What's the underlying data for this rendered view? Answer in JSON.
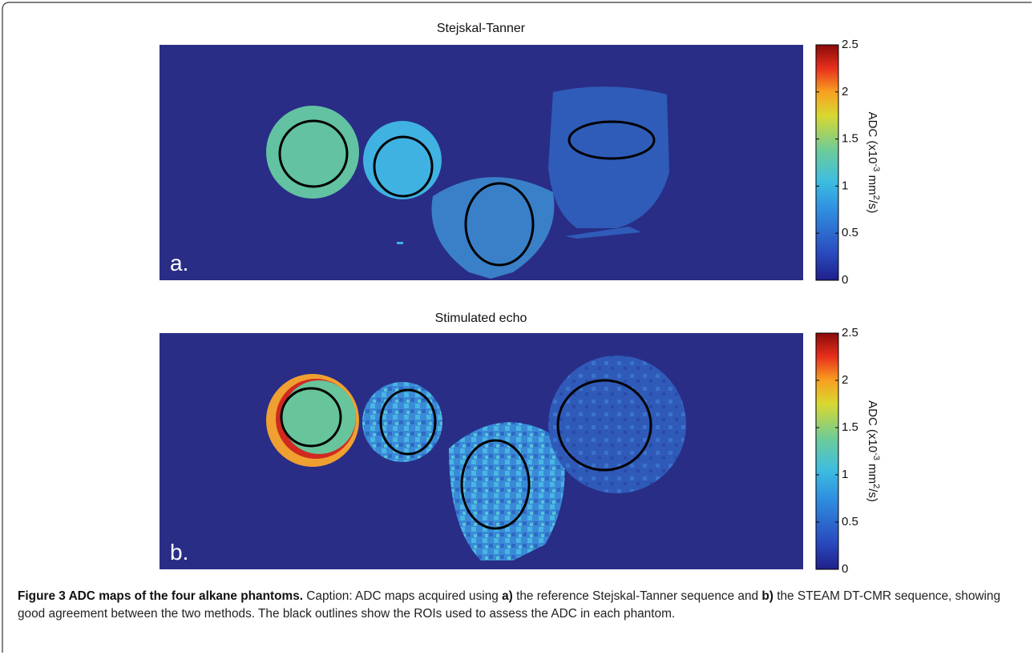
{
  "figure": {
    "panels": [
      {
        "title": "Stejskal-Tanner",
        "letter": "a.",
        "colorbar": {
          "lim": [
            0,
            2.5
          ],
          "ticks": [
            0,
            0.5,
            1,
            1.5,
            2,
            2.5
          ],
          "label": [
            "ADC (x10",
            "-3",
            " mm",
            "2",
            "/s)"
          ]
        }
      },
      {
        "title": "Stimulated echo",
        "letter": "b.",
        "colorbar": {
          "lim": [
            0,
            2.5
          ],
          "ticks": [
            0,
            0.5,
            1,
            1.5,
            2,
            2.5
          ],
          "label": [
            "ADC (x10",
            "-3",
            " mm",
            "2",
            "/s)"
          ]
        }
      }
    ],
    "caption": {
      "segments": [
        {
          "text": "Figure 3 ADC maps of the four alkane phantoms.",
          "bold": true
        },
        {
          "text": " Caption: ADC maps acquired using ",
          "bold": false
        },
        {
          "text": "a)",
          "bold": true
        },
        {
          "text": " the reference Stejskal-Tanner sequence and ",
          "bold": false
        },
        {
          "text": "b)",
          "bold": true
        },
        {
          "text": " the STEAM DT-CMR sequence, showing good agreement between the two methods. The black outlines show the ROIs used to assess the ADC in each phantom.",
          "bold": false
        }
      ]
    }
  }
}
